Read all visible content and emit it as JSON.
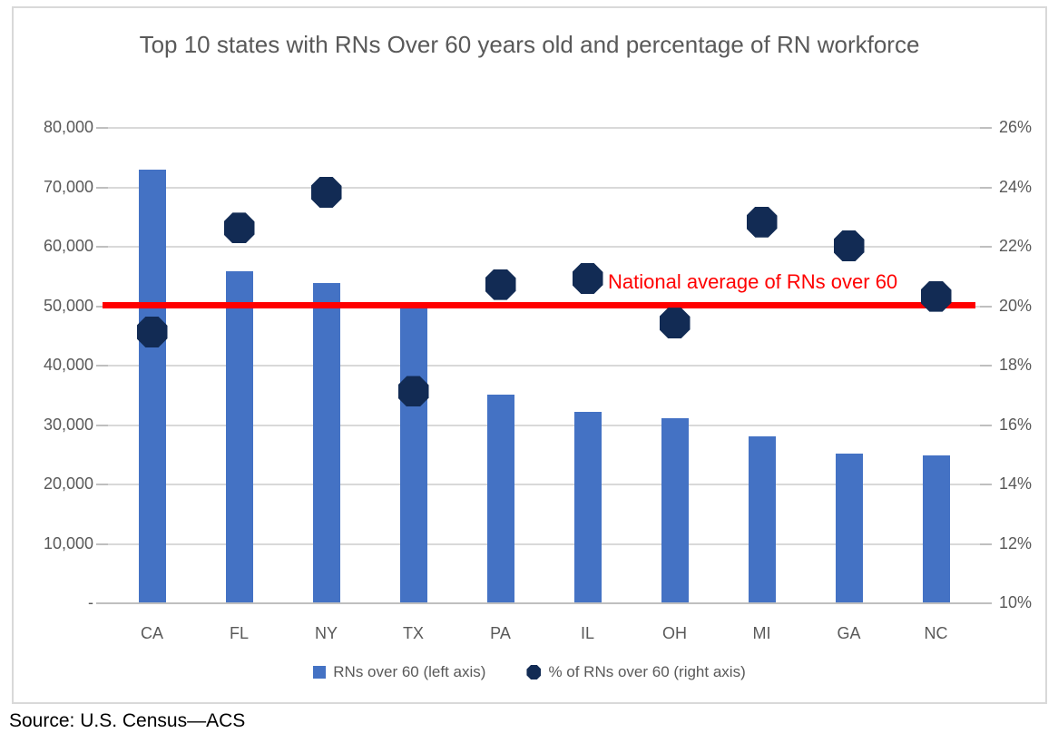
{
  "chart_data": {
    "type": "combo-bar-scatter",
    "title": "Top 10 states with RNs Over 60 years old and percentage of RN workforce",
    "categories": [
      "CA",
      "FL",
      "NY",
      "TX",
      "PA",
      "IL",
      "OH",
      "MI",
      "GA",
      "NC"
    ],
    "series": [
      {
        "name": "RNs over 60 (left axis)",
        "type": "bar",
        "axis": "left",
        "color": "#4472C4",
        "values": [
          72900,
          55700,
          53800,
          49500,
          35000,
          32000,
          31000,
          28000,
          25100,
          24800
        ]
      },
      {
        "name": "% of RNs over 60 (right axis)",
        "type": "scatter",
        "axis": "right",
        "color": "#122B54",
        "marker": "octagon",
        "values_pct": [
          19.1,
          22.6,
          23.8,
          17.1,
          20.7,
          20.9,
          19.4,
          22.8,
          22.0,
          20.3
        ]
      }
    ],
    "left_axis": {
      "min": 0,
      "max": 80000,
      "step": 10000,
      "labels": [
        "80,000",
        "70,000",
        "60,000",
        "50,000",
        "40,000",
        "30,000",
        "20,000",
        "10,000",
        "-"
      ]
    },
    "right_axis": {
      "min_pct": 10,
      "max_pct": 26,
      "step_pct": 2,
      "labels": [
        "26%",
        "24%",
        "22%",
        "20%",
        "18%",
        "16%",
        "14%",
        "12%",
        "10%"
      ]
    },
    "annotation": {
      "text": "National average of RNs over 60",
      "value_pct": 20,
      "value_left": 50000,
      "color": "#FF0000"
    },
    "legend": [
      {
        "label": "RNs over 60 (left axis)",
        "swatch": "square",
        "color": "#4472C4"
      },
      {
        "label": "% of RNs over 60 (right axis)",
        "swatch": "octagon",
        "color": "#122B54"
      }
    ],
    "grid": true,
    "legend_position": "bottom",
    "source": "Source: U.S. Census—ACS"
  }
}
